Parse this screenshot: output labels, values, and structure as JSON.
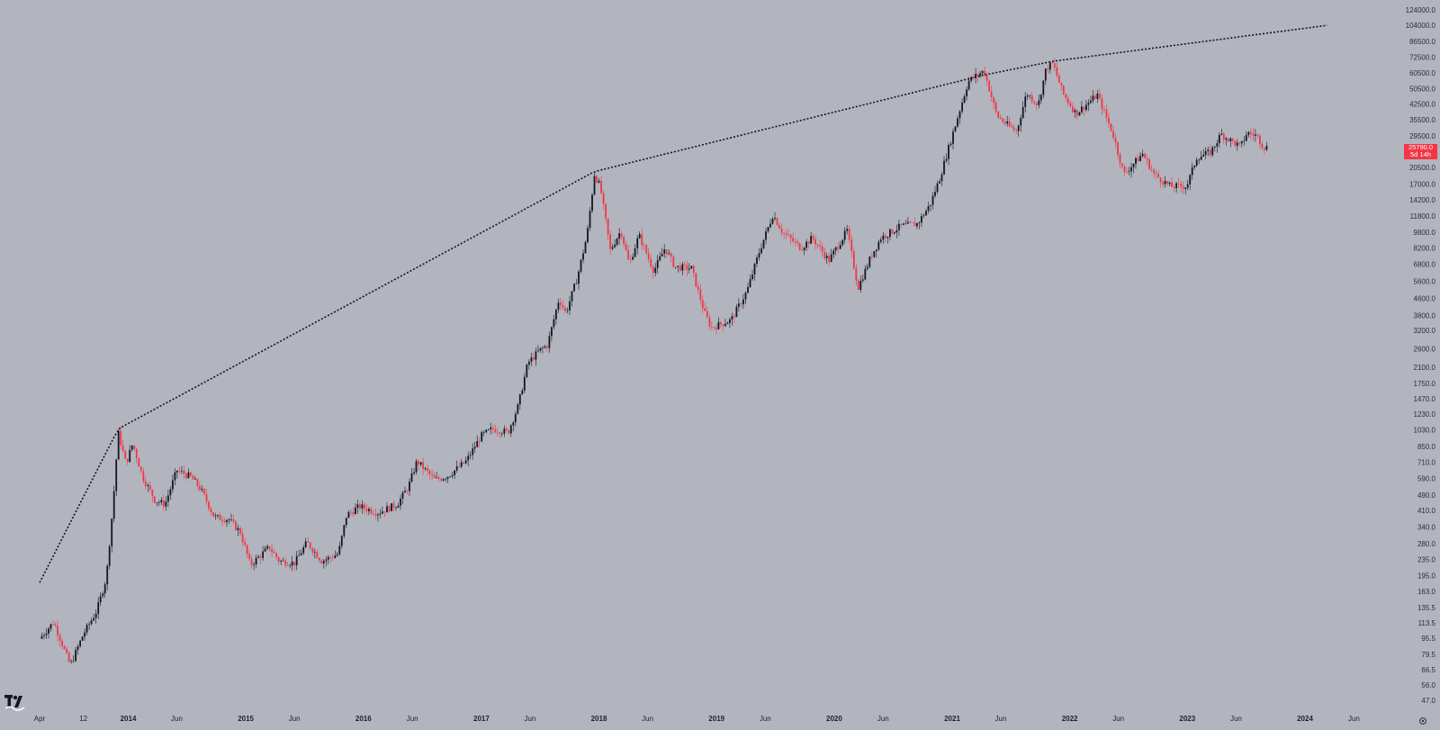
{
  "chart_data": {
    "type": "candlestick",
    "scale": "log",
    "grid": false,
    "colors": {
      "background": "#b2b5be",
      "up": "#131722",
      "down": "#f23645",
      "trendline": "#131722"
    },
    "y_ticks": [
      "124000.0",
      "104000.0",
      "86500.0",
      "72500.0",
      "60500.0",
      "50500.0",
      "42500.0",
      "35500.0",
      "29500.0",
      "20500.0",
      "17000.0",
      "14200.0",
      "11800.0",
      "9800.0",
      "8200.0",
      "6800.0",
      "5600.0",
      "4600.0",
      "3800.0",
      "3200.0",
      "2600.0",
      "2100.0",
      "1750.0",
      "1470.0",
      "1230.0",
      "1030.0",
      "850.0",
      "710.0",
      "590.0",
      "490.0",
      "410.0",
      "340.0",
      "280.0",
      "235.0",
      "195.0",
      "163.0",
      "135.5",
      "113.5",
      "95.5",
      "79.5",
      "66.5",
      "56.0",
      "47.0"
    ],
    "x_ticks": [
      {
        "label": "Apr",
        "date": "2013-04-01",
        "year": false
      },
      {
        "label": "12",
        "date": "2013-08-15",
        "year": false
      },
      {
        "label": "2014",
        "date": "2014-01-01",
        "year": true
      },
      {
        "label": "Jun",
        "date": "2014-06-01",
        "year": false
      },
      {
        "label": "2015",
        "date": "2015-01-01",
        "year": true
      },
      {
        "label": "Jun",
        "date": "2015-06-01",
        "year": false
      },
      {
        "label": "2016",
        "date": "2016-01-01",
        "year": true
      },
      {
        "label": "Jun",
        "date": "2016-06-01",
        "year": false
      },
      {
        "label": "2017",
        "date": "2017-01-01",
        "year": true
      },
      {
        "label": "Jun",
        "date": "2017-06-01",
        "year": false
      },
      {
        "label": "2018",
        "date": "2018-01-01",
        "year": true
      },
      {
        "label": "Jun",
        "date": "2018-06-01",
        "year": false
      },
      {
        "label": "2019",
        "date": "2019-01-01",
        "year": true
      },
      {
        "label": "Jun",
        "date": "2019-06-01",
        "year": false
      },
      {
        "label": "2020",
        "date": "2020-01-01",
        "year": true
      },
      {
        "label": "Jun",
        "date": "2020-06-01",
        "year": false
      },
      {
        "label": "2021",
        "date": "2021-01-01",
        "year": true
      },
      {
        "label": "Jun",
        "date": "2021-06-01",
        "year": false
      },
      {
        "label": "2022",
        "date": "2022-01-01",
        "year": true
      },
      {
        "label": "Jun",
        "date": "2022-06-01",
        "year": false
      },
      {
        "label": "2023",
        "date": "2023-01-01",
        "year": true
      },
      {
        "label": "Jun",
        "date": "2023-06-01",
        "year": false
      },
      {
        "label": "2024",
        "date": "2024-01-01",
        "year": true
      },
      {
        "label": "Jun",
        "date": "2024-06-01",
        "year": false
      }
    ],
    "series_close": [
      [
        "2013-04-01",
        95
      ],
      [
        "2013-05-15",
        115
      ],
      [
        "2013-07-05",
        70
      ],
      [
        "2013-08-15",
        100
      ],
      [
        "2013-09-25",
        130
      ],
      [
        "2013-10-25",
        190
      ],
      [
        "2013-11-15",
        440
      ],
      [
        "2013-12-01",
        1000
      ],
      [
        "2013-12-25",
        700
      ],
      [
        "2014-01-15",
        880
      ],
      [
        "2014-02-15",
        600
      ],
      [
        "2014-03-25",
        460
      ],
      [
        "2014-04-25",
        440
      ],
      [
        "2014-06-01",
        650
      ],
      [
        "2014-07-15",
        600
      ],
      [
        "2014-08-15",
        520
      ],
      [
        "2014-09-25",
        380
      ],
      [
        "2014-11-10",
        370
      ],
      [
        "2014-12-15",
        320
      ],
      [
        "2015-01-15",
        220
      ],
      [
        "2015-03-15",
        270
      ],
      [
        "2015-04-15",
        230
      ],
      [
        "2015-06-01",
        225
      ],
      [
        "2015-07-10",
        285
      ],
      [
        "2015-08-25",
        230
      ],
      [
        "2015-10-15",
        250
      ],
      [
        "2015-11-10",
        390
      ],
      [
        "2015-12-20",
        430
      ],
      [
        "2016-02-15",
        400
      ],
      [
        "2016-04-15",
        440
      ],
      [
        "2016-05-20",
        540
      ],
      [
        "2016-06-15",
        720
      ],
      [
        "2016-08-10",
        580
      ],
      [
        "2016-09-20",
        610
      ],
      [
        "2016-11-15",
        720
      ],
      [
        "2016-12-31",
        960
      ],
      [
        "2017-02-05",
        1040
      ],
      [
        "2017-03-25",
        1000
      ],
      [
        "2017-04-25",
        1350
      ],
      [
        "2017-05-25",
        2200
      ],
      [
        "2017-06-30",
        2550
      ],
      [
        "2017-07-25",
        2700
      ],
      [
        "2017-08-30",
        4600
      ],
      [
        "2017-09-20",
        3900
      ],
      [
        "2017-10-25",
        5800
      ],
      [
        "2017-11-25",
        9500
      ],
      [
        "2017-12-18",
        19000
      ],
      [
        "2018-01-05",
        16500
      ],
      [
        "2018-02-05",
        8000
      ],
      [
        "2018-03-10",
        10000
      ],
      [
        "2018-04-05",
        6800
      ],
      [
        "2018-05-05",
        9500
      ],
      [
        "2018-06-20",
        6300
      ],
      [
        "2018-07-25",
        8200
      ],
      [
        "2018-08-25",
        6600
      ],
      [
        "2018-10-15",
        6500
      ],
      [
        "2018-11-25",
        3900
      ],
      [
        "2018-12-15",
        3300
      ],
      [
        "2019-02-15",
        3600
      ],
      [
        "2019-04-05",
        5000
      ],
      [
        "2019-05-15",
        8000
      ],
      [
        "2019-06-25",
        12000
      ],
      [
        "2019-07-25",
        9800
      ],
      [
        "2019-09-20",
        8200
      ],
      [
        "2019-10-25",
        9200
      ],
      [
        "2019-12-15",
        7100
      ],
      [
        "2020-02-10",
        10000
      ],
      [
        "2020-03-15",
        5200
      ],
      [
        "2020-04-25",
        7500
      ],
      [
        "2020-05-25",
        9200
      ],
      [
        "2020-07-25",
        10500
      ],
      [
        "2020-09-15",
        10800
      ],
      [
        "2020-10-25",
        13500
      ],
      [
        "2020-11-25",
        18500
      ],
      [
        "2020-12-25",
        27000
      ],
      [
        "2021-01-15",
        35000
      ],
      [
        "2021-02-20",
        55000
      ],
      [
        "2021-04-10",
        62000
      ],
      [
        "2021-05-20",
        37000
      ],
      [
        "2021-06-25",
        33000
      ],
      [
        "2021-07-20",
        31000
      ],
      [
        "2021-08-20",
        48000
      ],
      [
        "2021-09-25",
        42000
      ],
      [
        "2021-10-20",
        64000
      ],
      [
        "2021-11-10",
        67000
      ],
      [
        "2021-12-10",
        48000
      ],
      [
        "2022-01-20",
        38000
      ],
      [
        "2022-03-28",
        47000
      ],
      [
        "2022-05-15",
        30000
      ],
      [
        "2022-06-18",
        19000
      ],
      [
        "2022-08-15",
        24000
      ],
      [
        "2022-09-20",
        19000
      ],
      [
        "2022-11-10",
        16500
      ],
      [
        "2022-12-30",
        16600
      ],
      [
        "2023-01-30",
        23000
      ],
      [
        "2023-03-15",
        24500
      ],
      [
        "2023-04-15",
        30000
      ],
      [
        "2023-06-15",
        26000
      ],
      [
        "2023-07-05",
        30500
      ],
      [
        "2023-08-05",
        29500
      ],
      [
        "2023-08-25",
        26000
      ],
      [
        "2023-09-05",
        25790
      ]
    ],
    "trendline": [
      [
        "2013-04-01",
        180
      ],
      [
        "2013-12-01",
        1040
      ],
      [
        "2017-12-18",
        19600
      ],
      [
        "2021-04-10",
        59000
      ],
      [
        "2021-11-10",
        69000
      ],
      [
        "2024-03-10",
        104000
      ]
    ],
    "current_price": "25790.0",
    "countdown": "5d 14h"
  }
}
